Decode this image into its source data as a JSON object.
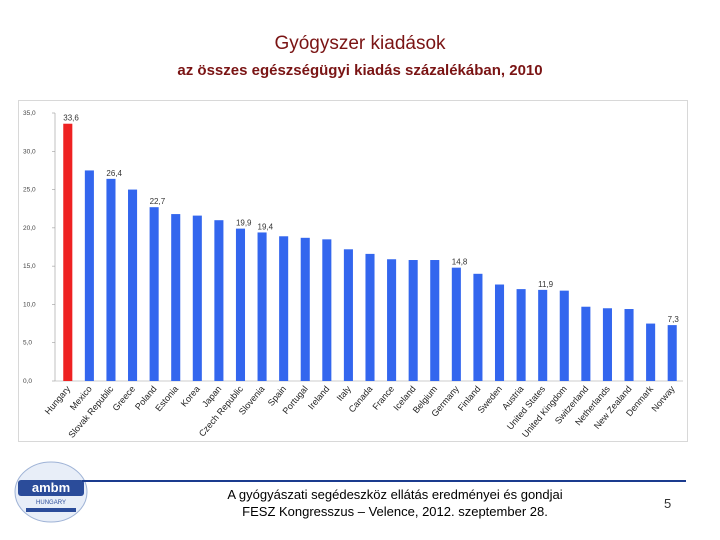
{
  "title": "Gyógyszer kiadások",
  "subtitle": "az összes egészségügyi kiadás százalékában, 2010",
  "footer": {
    "line1": "A gyógyászati segédeszköz ellátás eredményei és gondjai",
    "line2": "FESZ Kongresszus – Velence, 2012. szeptember 28."
  },
  "page_number": "5",
  "logo": {
    "text": "ambm",
    "subtext": "HUNGARY"
  },
  "colors": {
    "bar": "#3366ee",
    "highlight": "#ee2222",
    "title": "#7a1414"
  },
  "chart_data": {
    "type": "bar",
    "title": "",
    "xlabel": "",
    "ylabel": "",
    "ylim": [
      0,
      35
    ],
    "yticks": [
      "0,0",
      "5,0",
      "10,0",
      "15,0",
      "20,0",
      "25,0",
      "30,0",
      "35,0"
    ],
    "grid": false,
    "highlight": "Hungary",
    "categories": [
      "Hungary",
      "Mexico",
      "Slovak Republic",
      "Greece",
      "Poland",
      "Estonia",
      "Korea",
      "Japan",
      "Czech Republic",
      "Slovenia",
      "Spain",
      "Portugal",
      "Ireland",
      "Italy",
      "Canada",
      "France",
      "Iceland",
      "Belgium",
      "Germany",
      "Finland",
      "Sweden",
      "Austria",
      "United States",
      "United Kingdom",
      "Switzerland",
      "Netherlands",
      "New Zealand",
      "Denmark",
      "Norway"
    ],
    "values": [
      33.6,
      27.5,
      26.4,
      25.0,
      22.7,
      21.8,
      21.6,
      21.0,
      19.9,
      19.4,
      18.9,
      18.7,
      18.5,
      17.2,
      16.6,
      15.9,
      15.8,
      15.8,
      14.8,
      14.0,
      12.6,
      12.0,
      11.9,
      11.8,
      9.7,
      9.5,
      9.4,
      7.5,
      7.3
    ],
    "data_labels": {
      "Hungary": "33,6",
      "Slovak Republic": "26,4",
      "Poland": "22,7",
      "Czech Republic": "19,9",
      "Slovenia": "19,4",
      "Germany": "14,8",
      "United States": "11,9",
      "Norway": "7,3"
    }
  }
}
